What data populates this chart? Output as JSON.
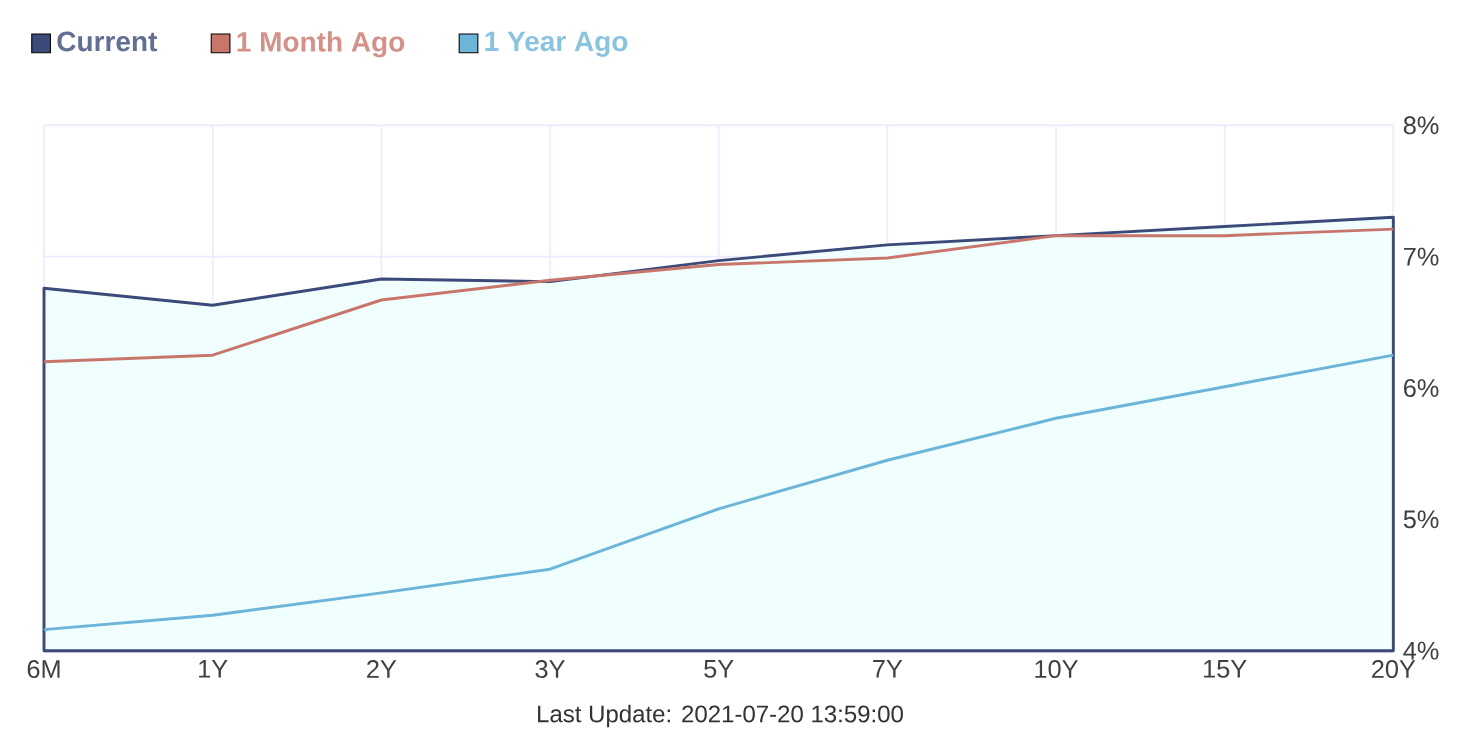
{
  "chart_data": {
    "type": "line",
    "categories": [
      "6M",
      "1Y",
      "2Y",
      "3Y",
      "5Y",
      "7Y",
      "10Y",
      "15Y",
      "20Y"
    ],
    "series": [
      {
        "name": "Current",
        "type": "area",
        "color": "#3c4a7a",
        "values": [
          6.76,
          6.63,
          6.83,
          6.81,
          6.97,
          7.09,
          7.16,
          7.23,
          7.3
        ]
      },
      {
        "name": "1 Month Ago",
        "color": "#c8766b",
        "values": [
          6.2,
          6.25,
          6.67,
          6.82,
          6.94,
          6.99,
          7.16,
          7.16,
          7.21
        ]
      },
      {
        "name": "1 Year Ago",
        "color": "#6cb4d8",
        "values": [
          4.16,
          4.27,
          4.44,
          4.62,
          5.08,
          5.45,
          5.77,
          6.01,
          6.25
        ]
      }
    ],
    "ylim": [
      4,
      8
    ],
    "yticks": [
      {
        "value": 4,
        "label": "4%"
      },
      {
        "value": 5,
        "label": "5%"
      },
      {
        "value": 6,
        "label": "6%"
      },
      {
        "value": 7,
        "label": "7%"
      },
      {
        "value": 8,
        "label": "8%"
      }
    ],
    "grid": true,
    "legend": "top left",
    "annotations": [
      "Last Update: 2021-07-20 13:59:00"
    ]
  }
}
